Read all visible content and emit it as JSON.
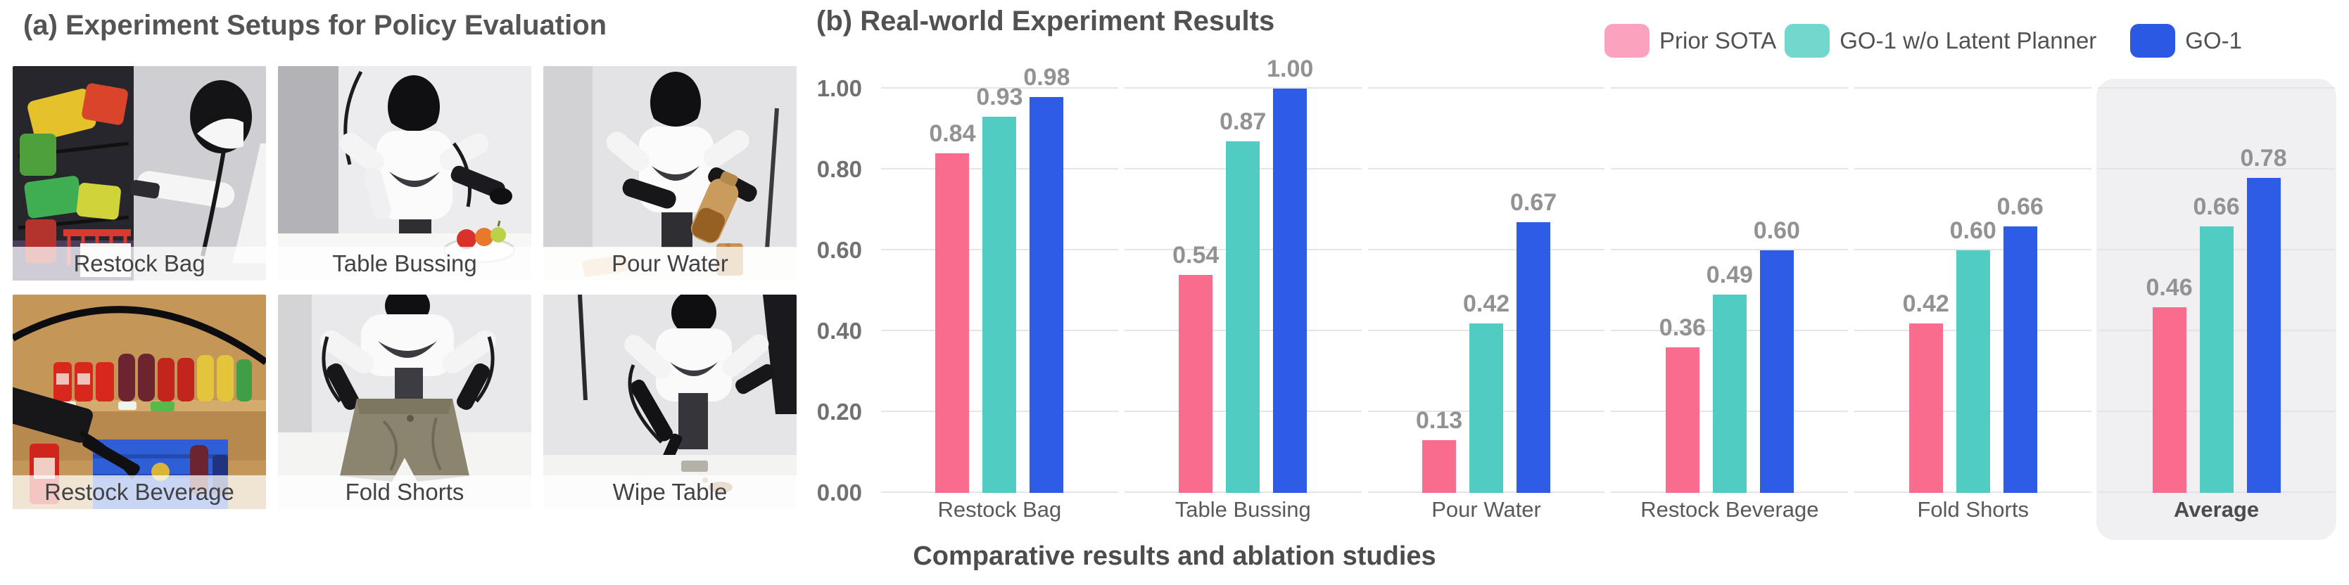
{
  "panel_a": {
    "title": "(a) Experiment Setups for Policy Evaluation",
    "tiles": [
      {
        "label": "Restock Bag"
      },
      {
        "label": "Table Bussing"
      },
      {
        "label": "Pour Water"
      },
      {
        "label": "Restock Beverage"
      },
      {
        "label": "Fold Shorts"
      },
      {
        "label": "Wipe Table"
      }
    ]
  },
  "panel_b": {
    "title": "(b) Real-world Experiment Results",
    "legend": [
      {
        "label": "Prior SOTA",
        "swatch_color": "#FBA3BE"
      },
      {
        "label": "GO-1 w/o Latent Planner",
        "swatch_color": "#73D7CD"
      },
      {
        "label": "GO-1",
        "swatch_color": "#2C59E2"
      }
    ]
  },
  "caption": "Comparative results and ablation studies",
  "chart_data": {
    "type": "bar",
    "title": "(b) Real-world Experiment Results",
    "categories": [
      "Restock Bag",
      "Table Bussing",
      "Pour Water",
      "Restock Beverage",
      "Fold Shorts",
      "Average"
    ],
    "series": [
      {
        "name": "Prior SOTA",
        "color": "#FA6C8E",
        "values": [
          0.84,
          0.54,
          0.13,
          0.36,
          0.42,
          0.46
        ]
      },
      {
        "name": "GO-1 w/o Latent Planner",
        "color": "#50CCC3",
        "values": [
          0.93,
          0.87,
          0.42,
          0.49,
          0.6,
          0.66
        ]
      },
      {
        "name": "GO-1",
        "color": "#2E5CE6",
        "values": [
          0.98,
          1.0,
          0.67,
          0.6,
          0.66,
          0.78
        ]
      }
    ],
    "y_ticks": [
      "1.00",
      "0.80",
      "0.60",
      "0.40",
      "0.20",
      "0.00"
    ],
    "y_tick_values": [
      1.0,
      0.8,
      0.6,
      0.4,
      0.2,
      0.0
    ],
    "ylim": [
      0,
      1.0
    ],
    "grid": true,
    "legend_position": "top-right",
    "highlight_category": "Average",
    "xlabel": "",
    "ylabel": ""
  }
}
